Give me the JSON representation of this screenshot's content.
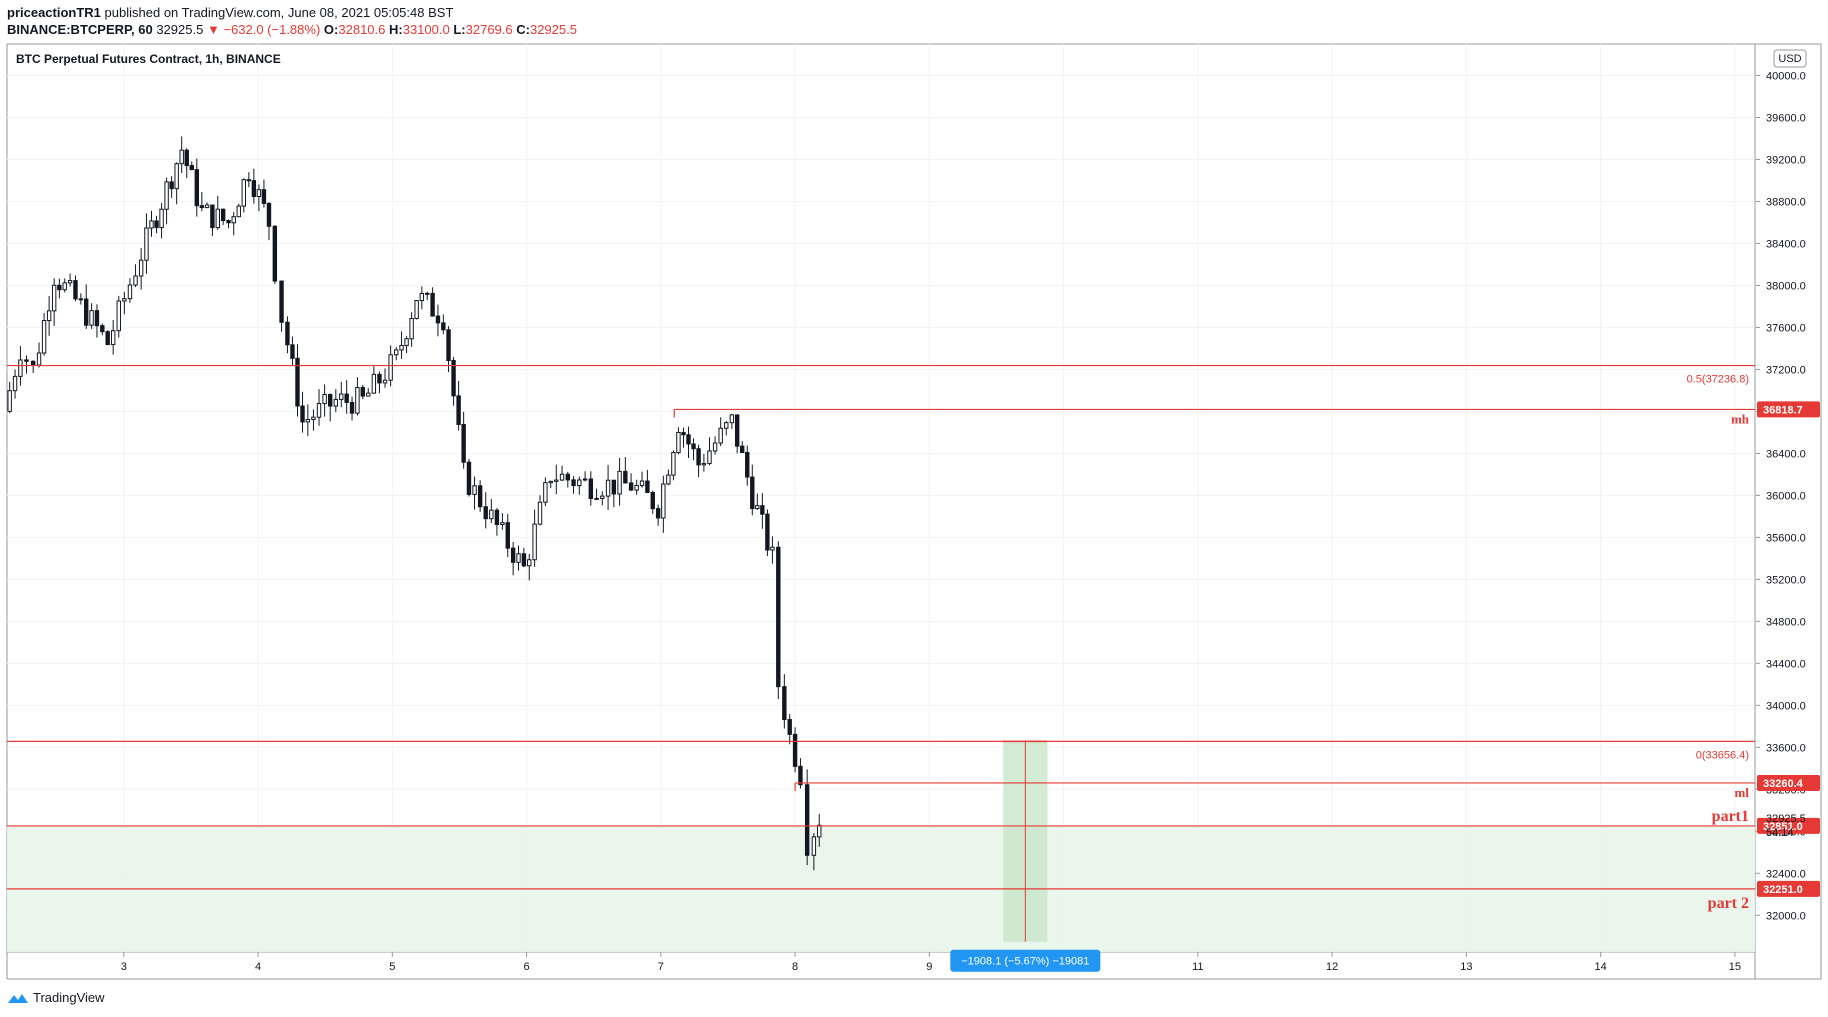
{
  "header": {
    "author": "priceactionTR1",
    "published_text": "published on TradingView.com, June 08, 2021 05:05:48 BST",
    "symbol_interval": "BINANCE:BTCPERP, 60",
    "last_price": "32925.5",
    "change": "−632.0 (−1.88%)",
    "o_label": "O:",
    "o_value": "32810.6",
    "h_label": "H:",
    "h_value": "33100.0",
    "l_label": "L:",
    "l_value": "32769.6",
    "c_label": "C:",
    "c_value": "32925.5"
  },
  "footer": {
    "brand": "TradingView"
  },
  "colors": {
    "level_line": "#e53935",
    "zone_fill": "#e8f5e9",
    "measure_fill": "#c8e6c9",
    "measure_label_bg": "#2196f3",
    "candle": "#131722"
  },
  "chart_data": {
    "type": "candlestick",
    "title": "BTC Perpetual Futures Contract, 1h, BINANCE",
    "currency": "USD",
    "x_ticks": [
      "3",
      "4",
      "5",
      "6",
      "7",
      "8",
      "9",
      "10",
      "11",
      "12",
      "13",
      "14",
      "15"
    ],
    "x_range_days": [
      2.13,
      15.15
    ],
    "ylim": [
      31650,
      40300
    ],
    "y_ticks": [
      "32000.0",
      "32400.0",
      "32800.0",
      "33200.0",
      "33600.0",
      "34000.0",
      "34400.0",
      "34800.0",
      "35200.0",
      "35600.0",
      "36000.0",
      "36400.0",
      "36800.0",
      "37200.0",
      "37600.0",
      "38000.0",
      "38400.0",
      "38800.0",
      "39200.0",
      "39600.0",
      "40000.0"
    ],
    "current_price": "32925.5",
    "countdown": "54:14",
    "levels": [
      {
        "name": "fib_0.5",
        "price": 37236.8,
        "label": "0.5(37236.8)"
      },
      {
        "name": "mh",
        "price": 36818.7,
        "badge": "36818.7",
        "tag": "mh",
        "start_day": 7.1
      },
      {
        "name": "fib_0",
        "price": 33656.4,
        "label": "0(33656.4)"
      },
      {
        "name": "ml",
        "price": 33260.4,
        "badge": "33260.4",
        "tag": "ml",
        "start_day": 8.0
      },
      {
        "name": "part1",
        "price": 32851.0,
        "badge": "32851.0",
        "tag": "part1"
      },
      {
        "name": "part2",
        "price": 32251.0,
        "badge": "32251.0",
        "tag": "part 2"
      }
    ],
    "zone": {
      "top": 32851.0,
      "bottom": 31650
    },
    "measure": {
      "start_day": 9.55,
      "end_day": 9.88,
      "top": 33656.4,
      "bottom": 31748,
      "label": "−1908.1 (−5.67%) −19081"
    },
    "anchors": [
      [
        2.13,
        36800
      ],
      [
        2.25,
        37400
      ],
      [
        2.35,
        37200
      ],
      [
        2.5,
        38100
      ],
      [
        2.7,
        37800
      ],
      [
        2.9,
        37450
      ],
      [
        3.15,
        38300
      ],
      [
        3.3,
        38800
      ],
      [
        3.45,
        39300
      ],
      [
        3.6,
        38700
      ],
      [
        3.8,
        38600
      ],
      [
        3.95,
        39100
      ],
      [
        4.1,
        38600
      ],
      [
        4.2,
        37700
      ],
      [
        4.35,
        36700
      ],
      [
        4.6,
        36900
      ],
      [
        4.8,
        36900
      ],
      [
        5.05,
        37300
      ],
      [
        5.2,
        37900
      ],
      [
        5.4,
        37700
      ],
      [
        5.55,
        36200
      ],
      [
        5.8,
        35700
      ],
      [
        6.0,
        35300
      ],
      [
        6.2,
        36200
      ],
      [
        6.5,
        36100
      ],
      [
        6.8,
        36100
      ],
      [
        7.0,
        35900
      ],
      [
        7.15,
        36700
      ],
      [
        7.3,
        36300
      ],
      [
        7.55,
        36700
      ],
      [
        7.7,
        36000
      ],
      [
        7.85,
        35400
      ],
      [
        7.9,
        34200
      ],
      [
        7.98,
        33700
      ],
      [
        8.06,
        33350
      ],
      [
        8.12,
        32700
      ],
      [
        8.2,
        32925
      ]
    ]
  }
}
